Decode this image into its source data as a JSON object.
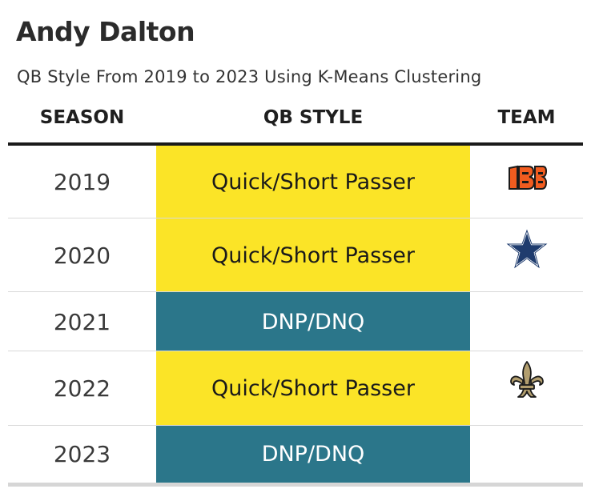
{
  "title": "Andy Dalton",
  "subtitle": "QB Style From 2019 to 2023 Using K-Means Clustering",
  "columns": {
    "season": "SEASON",
    "style": "QB STYLE",
    "team": "TEAM"
  },
  "rows": [
    {
      "season": "2019",
      "style": "Quick/Short Passer",
      "team_icon": "bengals-logo-icon"
    },
    {
      "season": "2020",
      "style": "Quick/Short Passer",
      "team_icon": "cowboys-star-icon"
    },
    {
      "season": "2021",
      "style": "DNP/DNQ",
      "team_icon": ""
    },
    {
      "season": "2022",
      "style": "Quick/Short Passer",
      "team_icon": "saints-fleur-de-lis-icon"
    },
    {
      "season": "2023",
      "style": "DNP/DNQ",
      "team_icon": ""
    }
  ],
  "colors": {
    "quick_short_passer": "#fbe427",
    "dnp_dnq": "#2b768a",
    "bengals_orange": "#f25c1f",
    "cowboys_navy": "#1f3c6e",
    "saints_gold": "#b29e6e"
  }
}
